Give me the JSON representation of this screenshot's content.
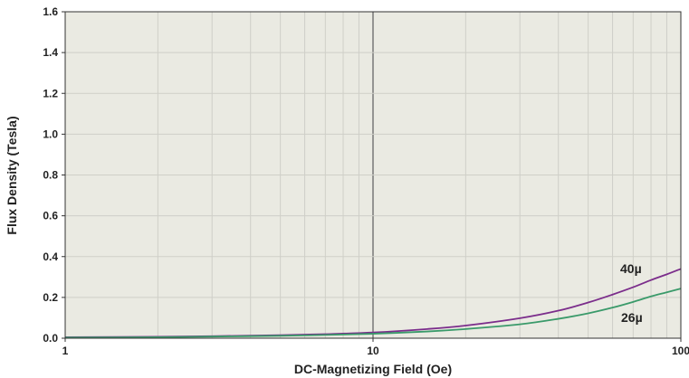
{
  "chart_data": {
    "type": "line",
    "title": "",
    "xlabel": "DC-Magnetizing Field (Oe)",
    "ylabel": "Flux Density (Tesla)",
    "x_scale": "log",
    "xlim": [
      1,
      100
    ],
    "ylim": [
      0,
      1.6
    ],
    "x_ticks": [
      "1",
      "10",
      "100"
    ],
    "y_ticks": [
      "0.0",
      "0.2",
      "0.4",
      "0.6",
      "0.8",
      "1.0",
      "1.2",
      "1.4",
      "1.6"
    ],
    "grid": true,
    "series": [
      {
        "name": "40µ",
        "color": "#7b2d8b",
        "x": [
          1,
          2,
          3,
          5,
          7,
          10,
          15,
          20,
          30,
          40,
          50,
          60,
          70,
          80,
          90,
          100
        ],
        "y": [
          0.005,
          0.007,
          0.01,
          0.015,
          0.02,
          0.028,
          0.045,
          0.062,
          0.098,
          0.135,
          0.175,
          0.214,
          0.25,
          0.285,
          0.313,
          0.34
        ]
      },
      {
        "name": "26µ",
        "color": "#3a9a6a",
        "x": [
          1,
          2,
          3,
          5,
          7,
          10,
          15,
          20,
          30,
          40,
          50,
          60,
          70,
          80,
          90,
          100
        ],
        "y": [
          0.003,
          0.005,
          0.008,
          0.012,
          0.016,
          0.022,
          0.033,
          0.045,
          0.068,
          0.095,
          0.122,
          0.15,
          0.178,
          0.205,
          0.225,
          0.243
        ]
      }
    ]
  },
  "colors": {
    "plot_background": "#eaeae2",
    "major_grid": "#777777",
    "minor_grid": "#cfcfc8",
    "axis": "#333333"
  }
}
